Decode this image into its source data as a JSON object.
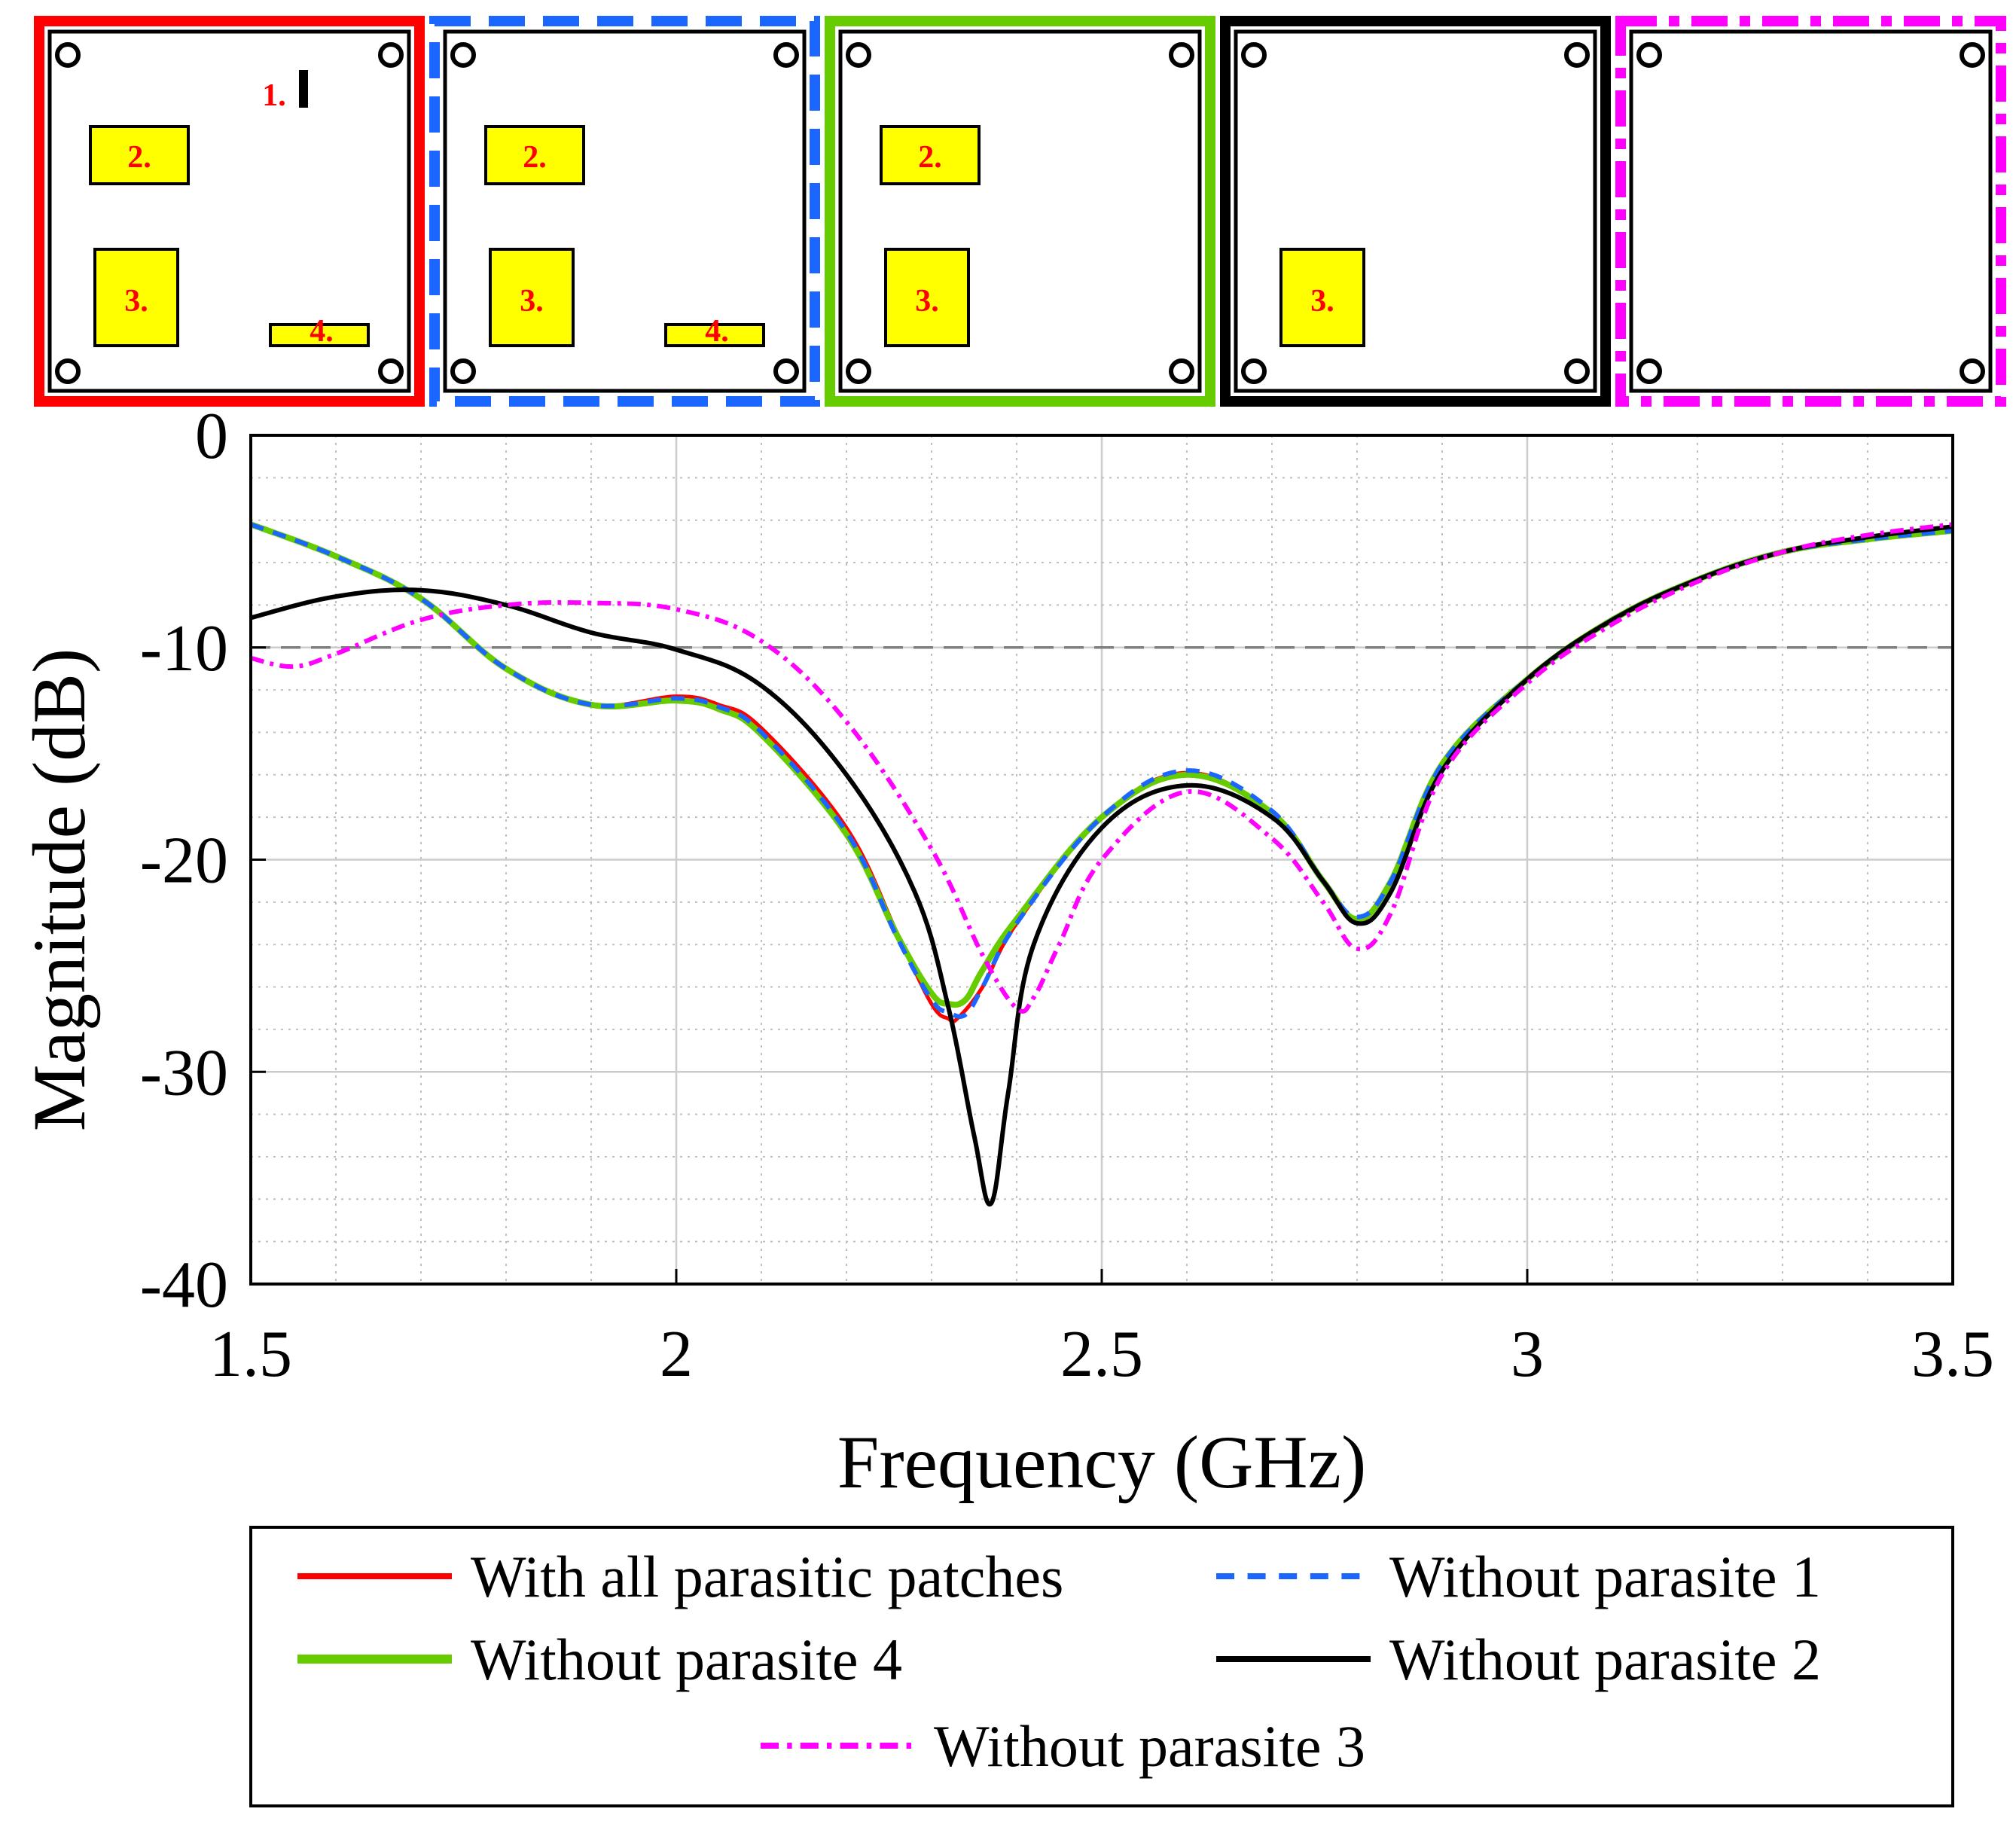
{
  "colors": {
    "red": "#ff0000",
    "blue": "#1a66ff",
    "green": "#66cc00",
    "black": "#000000",
    "magenta": "#ff00ff",
    "patch_fill": "#ffff00",
    "grid": "#cccccc",
    "threshold": "#808080"
  },
  "insets": [
    {
      "frame_color": "#ff0000",
      "frame_style": "solid",
      "patches": [
        {
          "id": "1",
          "label": "1."
        },
        {
          "id": "2",
          "label": "2."
        },
        {
          "id": "3",
          "label": "3."
        },
        {
          "id": "4",
          "label": "4."
        }
      ]
    },
    {
      "frame_color": "#1a66ff",
      "frame_style": "dashed",
      "patches": [
        {
          "id": "2",
          "label": "2."
        },
        {
          "id": "3",
          "label": "3."
        },
        {
          "id": "4",
          "label": "4."
        }
      ]
    },
    {
      "frame_color": "#66cc00",
      "frame_style": "solid",
      "patches": [
        {
          "id": "2",
          "label": "2."
        },
        {
          "id": "3",
          "label": "3."
        }
      ]
    },
    {
      "frame_color": "#000000",
      "frame_style": "solid",
      "patches": [
        {
          "id": "3",
          "label": "3."
        }
      ]
    },
    {
      "frame_color": "#ff00ff",
      "frame_style": "dashdot",
      "patches": []
    }
  ],
  "chart_data": {
    "type": "line",
    "title": "",
    "xlabel": "Frequency (GHz)",
    "ylabel": "Magnitude (dB)",
    "xlim": [
      1.5,
      3.5
    ],
    "ylim": [
      -40,
      0
    ],
    "xticks": [
      1.5,
      2,
      2.5,
      3,
      3.5
    ],
    "xtick_labels": [
      "1.5",
      "2",
      "2.5",
      "3",
      "3.5"
    ],
    "yticks": [
      0,
      -10,
      -20,
      -30,
      -40
    ],
    "ytick_labels": [
      "0",
      "-10",
      "-20",
      "-30",
      "-40"
    ],
    "grid": true,
    "minor_grid": true,
    "reference_line": {
      "y": -10,
      "style": "dashed"
    },
    "legend_position": "bottom",
    "series": [
      {
        "name": "With all parasitic patches",
        "color": "#ff0000",
        "style": "solid",
        "x": [
          1.5,
          1.6,
          1.7,
          1.8,
          1.9,
          2.0,
          2.05,
          2.1,
          2.2,
          2.26,
          2.3,
          2.32,
          2.33,
          2.36,
          2.4,
          2.5,
          2.6,
          2.7,
          2.76,
          2.8,
          2.84,
          2.9,
          3.0,
          3.1,
          3.2,
          3.3,
          3.4,
          3.5
        ],
        "y": [
          -4.2,
          -5.7,
          -7.7,
          -11.0,
          -12.7,
          -12.3,
          -12.7,
          -13.8,
          -18.5,
          -23.5,
          -26.8,
          -27.5,
          -27.5,
          -26.0,
          -23.0,
          -18.0,
          -15.9,
          -17.8,
          -21.0,
          -22.9,
          -21.0,
          -15.5,
          -11.5,
          -8.7,
          -6.8,
          -5.5,
          -4.9,
          -4.5
        ]
      },
      {
        "name": "Without parasite 1",
        "color": "#1a66ff",
        "style": "dashed",
        "x": [
          1.5,
          1.6,
          1.7,
          1.8,
          1.9,
          2.0,
          2.05,
          2.1,
          2.2,
          2.26,
          2.3,
          2.32,
          2.34,
          2.36,
          2.4,
          2.5,
          2.6,
          2.7,
          2.76,
          2.8,
          2.84,
          2.9,
          3.0,
          3.1,
          3.2,
          3.3,
          3.4,
          3.5
        ],
        "y": [
          -4.2,
          -5.7,
          -7.7,
          -11.0,
          -12.7,
          -12.4,
          -12.8,
          -14.0,
          -18.7,
          -23.7,
          -26.6,
          -27.2,
          -27.3,
          -26.0,
          -23.0,
          -18.0,
          -15.8,
          -17.7,
          -21.0,
          -22.7,
          -21.0,
          -15.5,
          -11.5,
          -8.7,
          -6.8,
          -5.5,
          -4.9,
          -4.5
        ]
      },
      {
        "name": "Without parasite 4",
        "color": "#66cc00",
        "style": "solid",
        "x": [
          1.5,
          1.6,
          1.7,
          1.8,
          1.9,
          2.0,
          2.05,
          2.1,
          2.2,
          2.26,
          2.3,
          2.32,
          2.34,
          2.36,
          2.4,
          2.5,
          2.6,
          2.7,
          2.76,
          2.8,
          2.84,
          2.9,
          3.0,
          3.1,
          3.2,
          3.3,
          3.4,
          3.5
        ],
        "y": [
          -4.2,
          -5.7,
          -7.7,
          -11.0,
          -12.7,
          -12.5,
          -12.9,
          -14.1,
          -18.8,
          -23.6,
          -26.3,
          -26.8,
          -26.6,
          -25.2,
          -22.8,
          -18.0,
          -16.0,
          -17.8,
          -21.0,
          -22.8,
          -21.0,
          -15.5,
          -11.5,
          -8.7,
          -6.8,
          -5.5,
          -4.9,
          -4.5
        ]
      },
      {
        "name": "Without parasite 2",
        "color": "#000000",
        "style": "solid",
        "x": [
          1.5,
          1.6,
          1.7,
          1.8,
          1.9,
          2.0,
          2.1,
          2.2,
          2.28,
          2.32,
          2.35,
          2.37,
          2.39,
          2.42,
          2.5,
          2.6,
          2.7,
          2.76,
          2.8,
          2.84,
          2.9,
          3.0,
          3.1,
          3.2,
          3.3,
          3.4,
          3.5
        ],
        "y": [
          -8.6,
          -7.6,
          -7.3,
          -8.0,
          -9.3,
          -10.1,
          -11.8,
          -16.0,
          -21.5,
          -27.0,
          -33.0,
          -36.2,
          -31.0,
          -24.0,
          -18.5,
          -16.5,
          -18.0,
          -21.0,
          -23.0,
          -21.5,
          -15.8,
          -11.5,
          -8.7,
          -6.8,
          -5.5,
          -4.8,
          -4.3
        ]
      },
      {
        "name": "Without parasite 3",
        "color": "#ff00ff",
        "style": "dashdot",
        "x": [
          1.5,
          1.55,
          1.6,
          1.7,
          1.8,
          1.9,
          2.0,
          2.1,
          2.2,
          2.3,
          2.36,
          2.4,
          2.42,
          2.45,
          2.5,
          2.6,
          2.7,
          2.76,
          2.8,
          2.84,
          2.9,
          3.0,
          3.1,
          3.2,
          3.3,
          3.4,
          3.5
        ],
        "y": [
          -10.5,
          -10.9,
          -10.3,
          -8.7,
          -8.0,
          -7.9,
          -8.2,
          -9.7,
          -13.5,
          -19.5,
          -24.5,
          -27.0,
          -26.5,
          -24.0,
          -20.0,
          -16.8,
          -19.0,
          -22.0,
          -24.2,
          -22.5,
          -16.0,
          -11.7,
          -8.9,
          -6.9,
          -5.5,
          -4.7,
          -4.2
        ]
      }
    ]
  }
}
